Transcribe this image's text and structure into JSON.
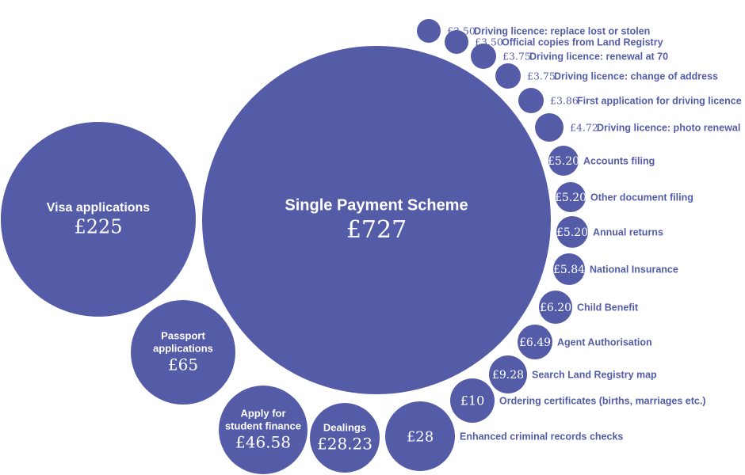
{
  "chart_data": {
    "type": "bubble",
    "title": "",
    "unit": "£",
    "color": "#545ca8",
    "items": [
      {
        "label": "Single Payment Scheme",
        "value": 727,
        "display": "£727"
      },
      {
        "label": "Visa applications",
        "value": 225,
        "display": "£225"
      },
      {
        "label": "Passport applications",
        "value": 65,
        "display": "£65"
      },
      {
        "label": "Apply for student finance",
        "value": 46.58,
        "display": "£46.58"
      },
      {
        "label": "Dealings",
        "value": 28.23,
        "display": "£28.23"
      },
      {
        "label": "Enhanced criminal records checks",
        "value": 28,
        "display": "£28"
      },
      {
        "label": "Ordering certificates (births, marriages etc.)",
        "value": 10,
        "display": "£10"
      },
      {
        "label": "Search Land Registry map",
        "value": 9.28,
        "display": "£9.28"
      },
      {
        "label": "Agent Authorisation",
        "value": 6.49,
        "display": "£6.49"
      },
      {
        "label": "Child Benefit",
        "value": 6.2,
        "display": "£6.20"
      },
      {
        "label": "National Insurance",
        "value": 5.84,
        "display": "£5.84"
      },
      {
        "label": "Annual returns",
        "value": 5.2,
        "display": "£5.20"
      },
      {
        "label": "Other document filing",
        "value": 5.2,
        "display": "£5.20"
      },
      {
        "label": "Accounts filing",
        "value": 5.2,
        "display": "£5.20"
      },
      {
        "label": "Driving licence: photo renewal",
        "value": 4.72,
        "display": "£4.72"
      },
      {
        "label": "First application for driving licence",
        "value": 3.86,
        "display": "£3.86"
      },
      {
        "label": "Driving licence: change of address",
        "value": 3.75,
        "display": "£3.75"
      },
      {
        "label": "Driving licence: renewal at 70",
        "value": 3.75,
        "display": "£3.75"
      },
      {
        "label": "Official copies from Land Registry",
        "value": 3.5,
        "display": "£3.50"
      },
      {
        "label": "Driving licence: replace lost or stolen",
        "value": 3.5,
        "display": "£3.50"
      }
    ]
  }
}
